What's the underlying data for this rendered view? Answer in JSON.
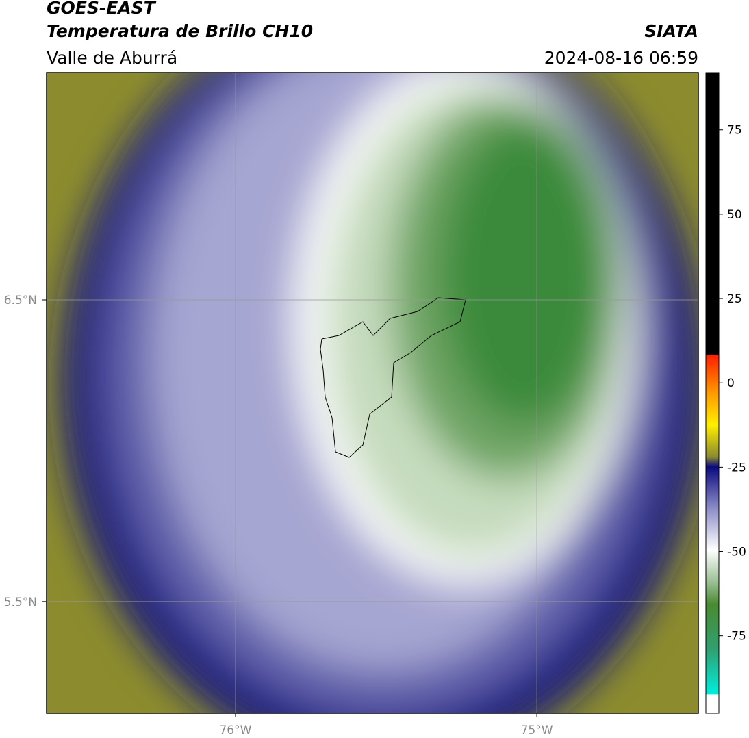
{
  "header": {
    "title": "GOES-EAST",
    "subtitle": "Temperatura de Brillo CH10",
    "region": "Valle de Aburrá",
    "source": "SIATA",
    "datetime": "2024-08-16 06:59"
  },
  "map": {
    "xlim": [
      -76.627,
      -74.464
    ],
    "ylim": [
      5.13,
      7.253
    ],
    "xticks": [
      {
        "value": -76,
        "label": "76°W"
      },
      {
        "value": -75,
        "label": "75°W"
      }
    ],
    "yticks": [
      {
        "value": 5.5,
        "label": "5.5°N"
      },
      {
        "value": 6.5,
        "label": "6.5°N"
      }
    ]
  },
  "colorbar": {
    "lim": [
      -98,
      92
    ],
    "ticks": [
      -75,
      -50,
      -25,
      0,
      25,
      50,
      75
    ]
  }
}
